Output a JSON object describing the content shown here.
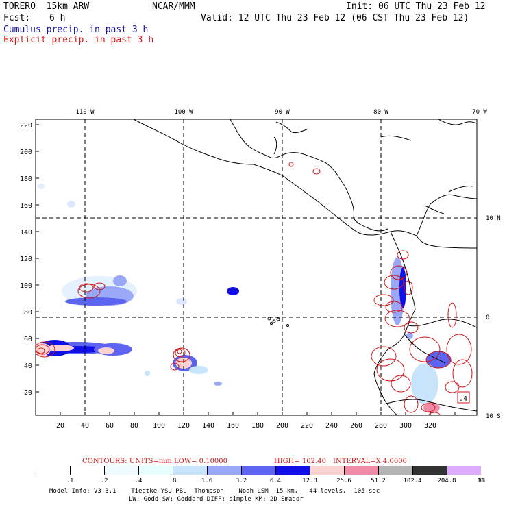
{
  "header": {
    "model": "TORERO  15km ARW",
    "org": "NCAR/MMM",
    "init": "Init: 06 UTC Thu 23 Feb 12",
    "fcst_label": "Fcst:",
    "fcst_value": "6 h",
    "valid": "Valid: 12 UTC Thu 23 Feb 12 (06 CST Thu 23 Feb 12)",
    "field1": "Cumulus precip. in past 3 h",
    "field2": "Explicit precip. in past 3 h"
  },
  "map": {
    "lon_labels": [
      "110 W",
      "100 W",
      "90 W",
      "80 W",
      "70 W"
    ],
    "lat_labels": [
      "10 N",
      "0",
      "10 S"
    ],
    "y_ticks": [
      "220",
      "200",
      "180",
      "160",
      "140",
      "120",
      "100",
      "80",
      "60",
      "40",
      "20"
    ],
    "x_ticks": [
      "20",
      "40",
      "60",
      "80",
      "100",
      "120",
      "140",
      "160",
      "180",
      "200",
      "220",
      "240",
      "260",
      "280",
      "300",
      "320"
    ],
    "contour_value_label": ".4"
  },
  "contour_info": {
    "contours": "CONTOURS:  UNITS=mm  LOW= 0.10000",
    "high": "HIGH=  102.40",
    "interval": "INTERVAL=X  4.0000"
  },
  "colorbar": {
    "labels": [
      ".1",
      ".2",
      ".4",
      ".8",
      "1.6",
      "3.2",
      "6.4",
      "12.8",
      "25.6",
      "51.2",
      "102.4",
      "204.8"
    ],
    "units": "mm",
    "colors": [
      "#ffffff",
      "#ffffff",
      "#f0fbff",
      "#e6ffff",
      "#c8e4fa",
      "#9aa8f8",
      "#5c64f0",
      "#1010e6",
      "#fad2d2",
      "#f08ca8",
      "#b4b4b4",
      "#323232",
      "#dcaaff"
    ]
  },
  "footer": {
    "line1": "Model Info: V3.3.1    Tiedtke YSU PBL  Thompson    Noah LSM  15 km,   44 levels,  105 sec",
    "line2": "LW: Godd SW: Goddard DIFF: simple KM: 2D Smagor"
  }
}
